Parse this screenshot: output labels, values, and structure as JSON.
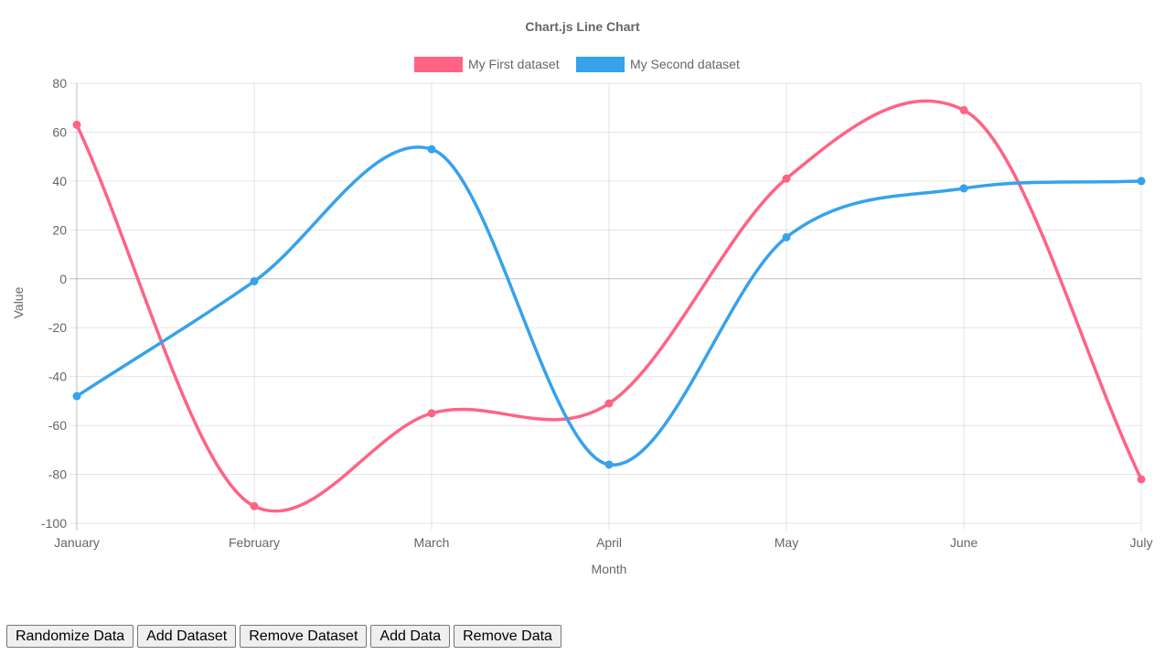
{
  "chart_data": {
    "type": "line",
    "title": "Chart.js Line Chart",
    "xlabel": "Month",
    "ylabel": "Value",
    "categories": [
      "January",
      "February",
      "March",
      "April",
      "May",
      "June",
      "July"
    ],
    "ylim": [
      -100,
      80
    ],
    "yticks": [
      80,
      60,
      40,
      20,
      0,
      -20,
      -40,
      -60,
      -80,
      -100
    ],
    "grid": true,
    "legend_position": "top",
    "smooth": true,
    "series": [
      {
        "name": "My First dataset",
        "color": "#ff6384",
        "values": [
          63,
          -93,
          -55,
          -51,
          41,
          69,
          -82
        ]
      },
      {
        "name": "My Second dataset",
        "color": "#36a2eb",
        "values": [
          -48,
          -1,
          53,
          -76,
          17,
          37,
          40
        ]
      }
    ]
  },
  "controls": {
    "randomize_label": "Randomize Data",
    "add_dataset_label": "Add Dataset",
    "remove_dataset_label": "Remove Dataset",
    "add_data_label": "Add Data",
    "remove_data_label": "Remove Data"
  }
}
